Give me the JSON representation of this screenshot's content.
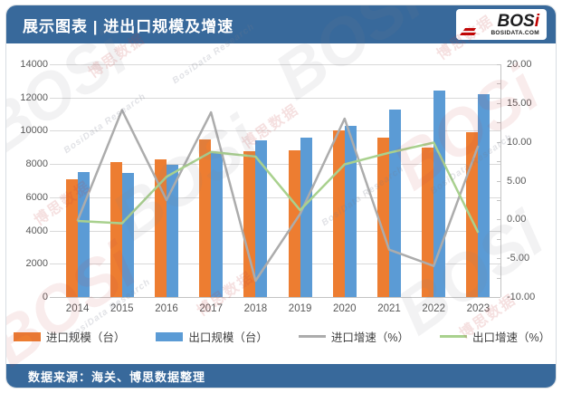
{
  "header": {
    "title": "展示图表 | 进出口规模及增速",
    "logo": {
      "bos": "BOS",
      "i": "i",
      "domain": "BOSIDATA.COM"
    }
  },
  "footer": {
    "source": "数据来源：海关、博思数据整理"
  },
  "colors": {
    "band_blue": "#38699b",
    "import_bar": "#ED7D31",
    "export_bar": "#5B9BD5",
    "import_line": "#ACACAC",
    "export_line": "#A9D18E",
    "axis_text": "#595959",
    "gridline": "#D9D9D9",
    "logo_red": "#C00000"
  },
  "watermarks": {
    "logo": "BOSi",
    "cn": "博思数据",
    "en": "BosiData Research"
  },
  "chart_data": {
    "type": "bar+line",
    "categories": [
      "2014",
      "2015",
      "2016",
      "2017",
      "2018",
      "2019",
      "2020",
      "2021",
      "2022",
      "2023"
    ],
    "series": [
      {
        "key": "import-scale-bar",
        "name": "进口规模（台）",
        "type": "bar",
        "axis": "left",
        "color": "#ED7D31",
        "values": [
          7100,
          8100,
          8300,
          9500,
          8780,
          8820,
          10050,
          9590,
          9000,
          9890
        ]
      },
      {
        "key": "export-scale-bar",
        "name": "出口规模（台）",
        "type": "bar",
        "axis": "left",
        "color": "#5B9BD5",
        "values": [
          7500,
          7470,
          7950,
          8700,
          9450,
          9600,
          10300,
          11300,
          12400,
          12180
        ]
      },
      {
        "key": "import-growth-line",
        "name": "进口增速（%）",
        "type": "line",
        "axis": "right",
        "color": "#ACACAC",
        "values": [
          -0.2,
          14.1,
          2.5,
          13.8,
          -7.9,
          0.7,
          13.0,
          -3.9,
          -6.0,
          9.5
        ]
      },
      {
        "key": "export-growth-line",
        "name": "出口增速（%）",
        "type": "line",
        "axis": "right",
        "color": "#A9D18E",
        "values": [
          -0.2,
          -0.5,
          5.5,
          8.7,
          8.1,
          1.2,
          7.1,
          8.6,
          9.9,
          -1.7
        ]
      }
    ],
    "left_axis": {
      "min": 0,
      "max": 14000,
      "step": 2000,
      "labels": [
        "14000",
        "12000",
        "10000",
        "8000",
        "6000",
        "4000",
        "2000",
        "0"
      ]
    },
    "right_axis": {
      "min": -10,
      "max": 20,
      "step": 5,
      "minor_step": 2.5,
      "labels": [
        "20.00",
        "15.00",
        "10.00",
        "5.00",
        "0.00",
        "-5.00",
        "-10.00"
      ]
    },
    "grid": "horizontal",
    "legend_position": "bottom"
  }
}
